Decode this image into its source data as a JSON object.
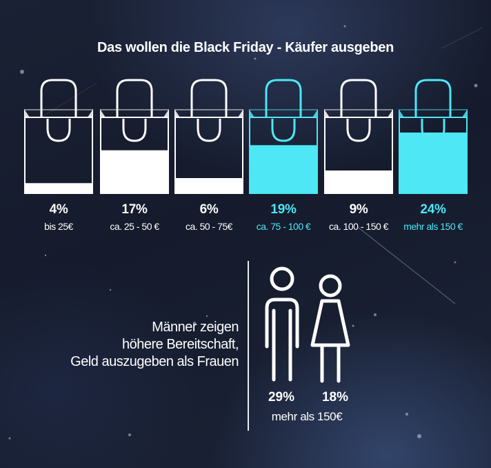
{
  "title": "Das wollen die Black Friday - Käufer ausgeben",
  "colors": {
    "white": "#ffffff",
    "highlight": "#4de7f5",
    "background": "#181f31"
  },
  "icons": {
    "bag": "shopping-bag-icon",
    "man": "man-icon",
    "woman": "woman-icon"
  },
  "chart_data": {
    "type": "bar",
    "title": "Das wollen die Black Friday - Käufer ausgeben",
    "categories": [
      "bis 25€",
      "ca. 25 - 50 €",
      "ca. 50 - 75€",
      "ca. 75 - 100 €",
      "ca. 100 - 150 €",
      "mehr als 150 €"
    ],
    "values": [
      4,
      17,
      6,
      19,
      9,
      24
    ],
    "labels": [
      "4%",
      "17%",
      "6%",
      "19%",
      "9%",
      "24%"
    ],
    "highlighted": [
      false,
      false,
      false,
      true,
      false,
      true
    ],
    "unit": "%",
    "ylim": [
      0,
      30
    ]
  },
  "gender": {
    "statement": [
      "Männer zeigen",
      "höhere Bereitschaft,",
      "Geld auszugeben als Frauen"
    ],
    "men_pct": "29%",
    "women_pct": "18%",
    "note": "mehr als 150€"
  }
}
